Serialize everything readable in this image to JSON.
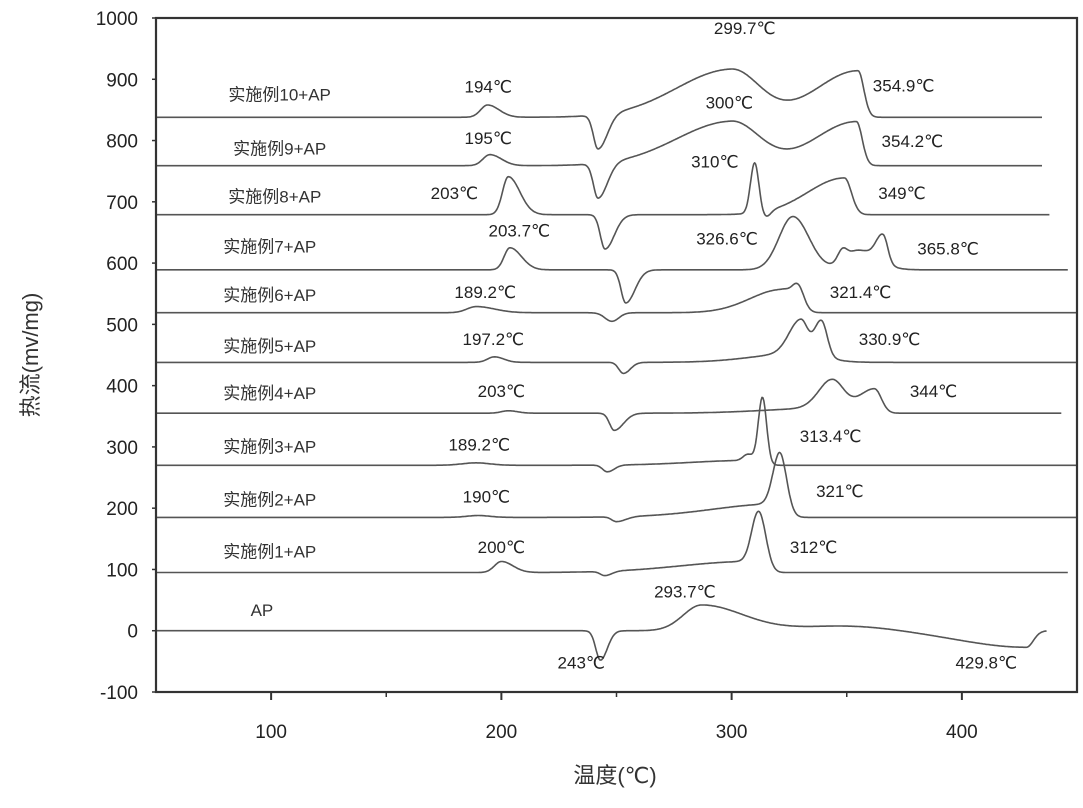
{
  "chart_data": {
    "type": "line",
    "title": "",
    "xlabel": "温度(℃)",
    "ylabel": "热流(mv/mg)",
    "xlim": [
      50,
      450
    ],
    "ylim": [
      -100,
      1000
    ],
    "xticks": [
      100,
      200,
      300,
      400
    ],
    "xminor": [
      150,
      250,
      350
    ],
    "yticks": [
      -100,
      0,
      100,
      200,
      300,
      400,
      500,
      600,
      700,
      800,
      900,
      1000
    ],
    "grid": false,
    "legend": "none (curves labelled inline)",
    "series_model": "value(T) = baseline + sum(amp * exp(-((T-center)/w)^2/2)), w = w_left if T<center else w_right; features = [center, amp, w_left, w_right]",
    "series": [
      {
        "name": "AP",
        "label_pos": [
          96,
          34
        ],
        "x_range": [
          50,
          437
        ],
        "baseline": 0,
        "features": [
          [
            243,
            -48,
            2,
            3
          ],
          [
            287,
            42,
            8,
            18
          ],
          [
            350,
            8,
            20,
            20
          ],
          [
            428,
            -27,
            28,
            3
          ]
        ]
      },
      {
        "name": "实施例1+AP",
        "label_pos": [
          99.4,
          129
        ],
        "x_range": [
          50,
          446
        ],
        "baseline": 95,
        "features": [
          [
            200,
            18,
            3,
            5
          ],
          [
            245,
            -7,
            2,
            3
          ],
          [
            308,
            18,
            30,
            3
          ],
          [
            312,
            92,
            3,
            3
          ]
        ]
      },
      {
        "name": "实施例2+AP",
        "label_pos": [
          99.4,
          214
        ],
        "x_range": [
          50,
          450
        ],
        "baseline": 185,
        "features": [
          [
            190,
            3,
            5,
            5
          ],
          [
            250,
            -8,
            2,
            4
          ],
          [
            320,
            22,
            28,
            3
          ],
          [
            321,
            85,
            3,
            3
          ]
        ]
      },
      {
        "name": "实施例3+AP",
        "label_pos": [
          99.4,
          301
        ],
        "x_range": [
          50,
          450
        ],
        "baseline": 270,
        "features": [
          [
            189,
            4,
            6,
            6
          ],
          [
            246,
            -11,
            2,
            3
          ],
          [
            308,
            8,
            25,
            4
          ],
          [
            307,
            10,
            2,
            2
          ],
          [
            313.4,
            108,
            1.8,
            1.8
          ]
        ]
      },
      {
        "name": "实施例4+AP",
        "label_pos": [
          99.4,
          388
        ],
        "x_range": [
          50,
          443.5
        ],
        "baseline": 355,
        "features": [
          [
            203,
            4,
            3,
            4
          ],
          [
            249,
            -28,
            2,
            4
          ],
          [
            340,
            8,
            25,
            5
          ],
          [
            344,
            48,
            6,
            5
          ],
          [
            362,
            40,
            7,
            3
          ]
        ]
      },
      {
        "name": "实施例5+AP",
        "label_pos": [
          99.4,
          465
        ],
        "x_range": [
          50,
          450
        ],
        "baseline": 438,
        "features": [
          [
            197,
            9,
            3,
            4
          ],
          [
            253,
            -18,
            2,
            3
          ],
          [
            330,
            15,
            20,
            10
          ],
          [
            330,
            55,
            5,
            3
          ],
          [
            339,
            58,
            3,
            2.5
          ]
        ]
      },
      {
        "name": "实施例6+AP",
        "label_pos": [
          99.4,
          548
        ],
        "x_range": [
          50,
          450
        ],
        "baseline": 519,
        "features": [
          [
            189,
            10,
            4,
            8
          ],
          [
            248,
            -14,
            3,
            3
          ],
          [
            322,
            38,
            14,
            5
          ],
          [
            329,
            32,
            2.5,
            2.5
          ]
        ]
      },
      {
        "name": "实施例7+AP",
        "label_pos": [
          99.4,
          627
        ],
        "x_range": [
          50,
          446
        ],
        "baseline": 589,
        "features": [
          [
            203.7,
            36,
            2.5,
            5
          ],
          [
            254,
            -54,
            2,
            4
          ],
          [
            326.6,
            87,
            6,
            7
          ],
          [
            348,
            18,
            2,
            2
          ],
          [
            355,
            32,
            6,
            8
          ],
          [
            365.8,
            45,
            3,
            2
          ]
        ]
      },
      {
        "name": "实施例8+AP",
        "label_pos": [
          101.6,
          709
        ],
        "x_range": [
          50,
          438
        ],
        "baseline": 679,
        "features": [
          [
            203,
            62,
            2.5,
            5
          ],
          [
            245,
            -56,
            2,
            4
          ],
          [
            310,
            82,
            1.8,
            1.8
          ],
          [
            315,
            -10,
            2,
            2
          ],
          [
            349,
            60,
            16,
            3
          ]
        ]
      },
      {
        "name": "实施例9+AP",
        "label_pos": [
          103.7,
          787
        ],
        "x_range": [
          50,
          435
        ],
        "baseline": 759,
        "features": [
          [
            195,
            18,
            3,
            5
          ],
          [
            242,
            -57,
            2,
            4
          ],
          [
            300,
            72,
            24,
            12
          ],
          [
            354.2,
            72,
            18,
            2.5
          ]
        ]
      },
      {
        "name": "实施例10+AP",
        "label_pos": [
          103.7,
          875
        ],
        "x_range": [
          50,
          435
        ],
        "baseline": 838,
        "features": [
          [
            194,
            20,
            3,
            5
          ],
          [
            242,
            -56,
            2,
            4
          ],
          [
            300,
            78,
            24,
            12
          ],
          [
            354.9,
            76,
            18,
            2.5
          ]
        ]
      }
    ],
    "annotations": [
      {
        "text": "194℃",
        "x": 194.3,
        "y": 888
      },
      {
        "text": "299.7℃",
        "x": 305.7,
        "y": 984
      },
      {
        "text": "354.9℃",
        "x": 374.7,
        "y": 890
      },
      {
        "text": "195℃",
        "x": 194.3,
        "y": 804
      },
      {
        "text": "300℃",
        "x": 299,
        "y": 862
      },
      {
        "text": "354.2℃",
        "x": 378.5,
        "y": 799
      },
      {
        "text": "310℃",
        "x": 292.7,
        "y": 766
      },
      {
        "text": "203℃",
        "x": 179.6,
        "y": 714
      },
      {
        "text": "349℃",
        "x": 374,
        "y": 714
      },
      {
        "text": "203.7℃",
        "x": 207.8,
        "y": 653
      },
      {
        "text": "326.6℃",
        "x": 298,
        "y": 640
      },
      {
        "text": "365.8℃",
        "x": 394,
        "y": 624
      },
      {
        "text": "189.2℃",
        "x": 193,
        "y": 553
      },
      {
        "text": "321.4℃",
        "x": 356,
        "y": 553
      },
      {
        "text": "197.2℃",
        "x": 196.5,
        "y": 476
      },
      {
        "text": "330.9℃",
        "x": 368.6,
        "y": 476
      },
      {
        "text": "203℃",
        "x": 200,
        "y": 391
      },
      {
        "text": "344℃",
        "x": 387.7,
        "y": 391
      },
      {
        "text": "313.4℃",
        "x": 343,
        "y": 318
      },
      {
        "text": "189.2℃",
        "x": 190.4,
        "y": 304
      },
      {
        "text": "321℃",
        "x": 347,
        "y": 228
      },
      {
        "text": "190℃",
        "x": 193.5,
        "y": 219
      },
      {
        "text": "200℃",
        "x": 200,
        "y": 137
      },
      {
        "text": "312℃",
        "x": 335.6,
        "y": 137
      },
      {
        "text": "293.7℃",
        "x": 279.7,
        "y": 64
      },
      {
        "text": "243℃",
        "x": 234.7,
        "y": -52
      },
      {
        "text": "429.8℃",
        "x": 410.6,
        "y": -52
      }
    ],
    "colors": {
      "curve": "#555555",
      "text": "#222222",
      "axis": "#333333"
    }
  }
}
